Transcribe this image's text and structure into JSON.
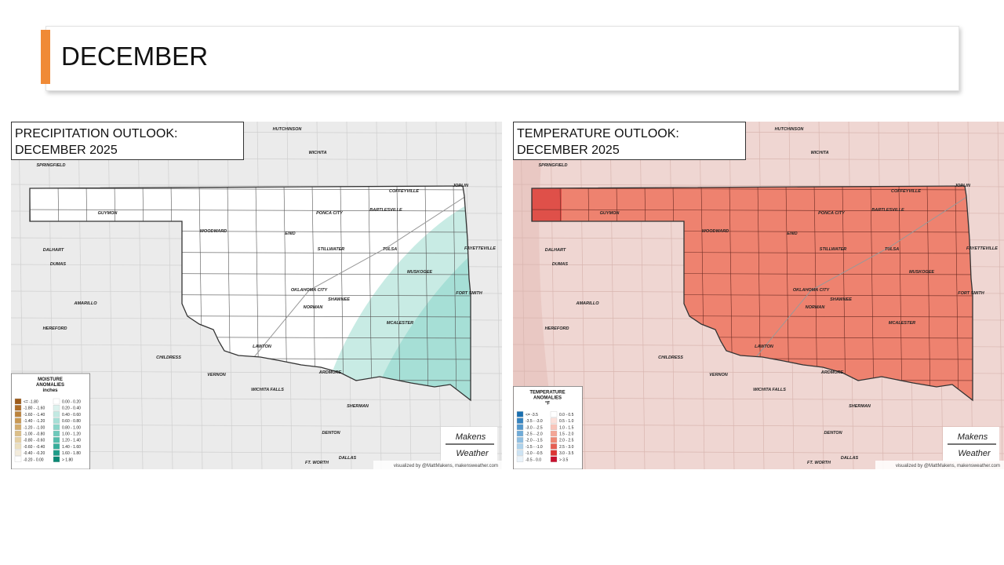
{
  "header": {
    "title": "DECEMBER"
  },
  "maps": [
    {
      "title_lines": [
        "PRECIPITATION OUTLOOK:",
        "DECEMBER 2025"
      ],
      "legend": {
        "title_lines": [
          "MOISTURE",
          "ANOMALIES",
          "inches"
        ],
        "left_items": [
          "<= -1.80",
          "-1.80 - -1.60",
          "-1.60 - -1.40",
          "-1.40 - -1.20",
          "-1.20 - -1.00",
          "-1.00 - -0.80",
          "-0.80 - -0.60",
          "-0.60 - -0.40",
          "-0.40 - -0.20",
          "-0.20 - 0.00"
        ],
        "right_items": [
          "0.00 - 0.20",
          "0.20 - 0.40",
          "0.40 - 0.60",
          "0.60 - 0.80",
          "0.80 - 1.00",
          "1.00 - 1.20",
          "1.20 - 1.40",
          "1.40 - 1.60",
          "1.60 - 1.80",
          "> 1.80"
        ]
      },
      "logo": [
        "Makens",
        "Weather"
      ],
      "credit": "visualized by @MattMakens, makensweather.com",
      "cities": [
        "HUTCHINSON",
        "WICHITA",
        "SPRINGFIELD",
        "COFFEYVILLE",
        "JOPLIN",
        "GUYMON",
        "PONCA CITY",
        "BARTLESVILLE",
        "WOODWARD",
        "ENID",
        "FAYETTEVILLE",
        "DALHART",
        "STILLWATER",
        "TULSA",
        "MUSKOGEE",
        "DUMAS",
        "OKLAHOMA CITY",
        "FORT SMITH",
        "SHAWNEE",
        "AMARILLO",
        "NORMAN",
        "MCALESTER",
        "HEREFORD",
        "LAWTON",
        "CHILDRESS",
        "VERNON",
        "ARDMORE",
        "WICHITA FALLS",
        "SHERMAN",
        "DENTON",
        "DALLAS",
        "FT. WORTH"
      ]
    },
    {
      "title_lines": [
        "TEMPERATURE OUTLOOK:",
        "DECEMBER 2025"
      ],
      "legend": {
        "title_lines": [
          "TEMPERATURE",
          "ANOMALIES",
          "°F"
        ],
        "left_items": [
          "<= -3.5",
          "-3.5 - -3.0",
          "-3.0 - -2.5",
          "-2.5 - -2.0",
          "-2.0 - -1.5",
          "-1.5 - -1.0",
          "-1.0 - -0.5",
          "-0.5 - 0.0"
        ],
        "right_items": [
          "0.0 - 0.5",
          "0.5 - 1.0",
          "1.0 - 1.5",
          "1.5 - 2.0",
          "2.0 - 2.5",
          "2.5 - 3.0",
          "3.0 - 3.5",
          "> 3.5"
        ]
      },
      "logo": [
        "Makens",
        "Weather"
      ],
      "credit": "visualized by @MattMakens, makensweather.com",
      "cities": [
        "HUTCHINSON",
        "WICHITA",
        "SPRINGFIELD",
        "COFFEYVILLE",
        "JOPLIN",
        "GUYMON",
        "PONCA CITY",
        "BARTLESVILLE",
        "WOODWARD",
        "ENID",
        "FAYETTEVILLE",
        "DALHART",
        "STILLWATER",
        "TULSA",
        "MUSKOGEE",
        "DUMAS",
        "OKLAHOMA CITY",
        "FORT SMITH",
        "SHAWNEE",
        "AMARILLO",
        "NORMAN",
        "MCALESTER",
        "HEREFORD",
        "LAWTON",
        "CHILDRESS",
        "VERNON",
        "ARDMORE",
        "WICHITA FALLS",
        "SHERMAN",
        "DENTON",
        "DALLAS",
        "FT. WORTH"
      ]
    }
  ]
}
